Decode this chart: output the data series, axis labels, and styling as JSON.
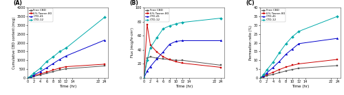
{
  "A": {
    "title": "(A)",
    "xlabel": "Time (hr)",
    "ylabel": "Cumulative CBD content (mcg)",
    "ylim": [
      0,
      4000
    ],
    "yticks": [
      0,
      500,
      1000,
      1500,
      2000,
      2500,
      3000,
      3500,
      4000
    ],
    "xlim": [
      0,
      25
    ],
    "xticks": [
      0,
      2,
      4,
      6,
      8,
      10,
      12,
      14,
      22,
      24
    ],
    "xticklabels": [
      "0",
      "2",
      "4",
      "6",
      "8",
      "10",
      "12",
      "14",
      "22",
      "24"
    ],
    "time": [
      0,
      1,
      2,
      4,
      6,
      8,
      10,
      12,
      24
    ],
    "series": {
      "Free CBD": [
        0,
        35,
        90,
        170,
        260,
        360,
        450,
        520,
        680
      ],
      "6% Tween 80": [
        0,
        55,
        130,
        230,
        330,
        450,
        560,
        640,
        780
      ],
      "CTD-41": [
        0,
        70,
        170,
        360,
        580,
        820,
        1050,
        1250,
        2150
      ],
      "CTD-12": [
        0,
        100,
        270,
        560,
        940,
        1200,
        1500,
        1700,
        3450
      ]
    },
    "colors": {
      "Free CBD": "#555555",
      "6% Tween 80": "#cc0000",
      "CTD-41": "#0000cc",
      "CTD-12": "#00aaaa"
    },
    "markers": {
      "Free CBD": "s",
      "6% Tween 80": "s",
      "CTD-41": "^",
      "CTD-12": "D"
    }
  },
  "B": {
    "title": "(B)",
    "xlabel": "Time (hr)",
    "ylabel": "Flux (mcg/hr-cm²)",
    "ylim": [
      0,
      100
    ],
    "yticks": [
      0,
      20,
      40,
      60,
      80,
      100
    ],
    "xlim": [
      0,
      25
    ],
    "xticks": [
      0,
      2,
      4,
      6,
      8,
      10,
      12,
      14,
      22,
      24
    ],
    "xticklabels": [
      "0",
      "2",
      "4",
      "6",
      "8",
      "10",
      "12",
      "14",
      "22",
      "24"
    ],
    "time": [
      0,
      1,
      2,
      4,
      6,
      8,
      10,
      12,
      24
    ],
    "series": {
      "Free CBD": [
        0,
        28,
        30,
        28,
        27,
        26,
        25,
        25,
        18
      ],
      "6% Tween 80": [
        0,
        76,
        47,
        37,
        30,
        26,
        23,
        21,
        15
      ],
      "CTD-41": [
        0,
        10,
        16,
        27,
        37,
        48,
        52,
        53,
        53
      ],
      "CTD-12": [
        0,
        25,
        43,
        57,
        70,
        74,
        77,
        79,
        85
      ]
    },
    "colors": {
      "Free CBD": "#555555",
      "6% Tween 80": "#cc0000",
      "CTD-41": "#0000cc",
      "CTD-12": "#00aaaa"
    },
    "markers": {
      "Free CBD": "s",
      "6% Tween 80": "s",
      "CTD-41": "^",
      "CTD-12": "D"
    }
  },
  "C": {
    "title": "(C)",
    "xlabel": "Time (hr)",
    "ylabel": "Permeation ratio (%)",
    "ylim": [
      0,
      40
    ],
    "yticks": [
      0,
      5,
      10,
      15,
      20,
      25,
      30,
      35,
      40
    ],
    "xlim": [
      0,
      25
    ],
    "xticks": [
      0,
      2,
      4,
      6,
      8,
      10,
      12,
      14,
      22,
      24
    ],
    "xticklabels": [
      "0",
      "2",
      "4",
      "6",
      "8",
      "10",
      "12",
      "14",
      "22",
      "24"
    ],
    "time": [
      0,
      1,
      2,
      4,
      6,
      8,
      10,
      12,
      24
    ],
    "series": {
      "Free CBD": [
        0,
        0.5,
        1.2,
        2.0,
        3.0,
        4.0,
        4.8,
        5.5,
        7.0
      ],
      "6% Tween 80": [
        0,
        0.8,
        1.8,
        3.2,
        4.8,
        6.2,
        7.2,
        8.0,
        10.5
      ],
      "CTD-41": [
        0,
        1.2,
        2.8,
        6.0,
        9.5,
        13.5,
        16.5,
        19.5,
        22.5
      ],
      "CTD-12": [
        0,
        1.8,
        4.5,
        9.0,
        14.5,
        19.5,
        23.5,
        26.5,
        35.0
      ]
    },
    "colors": {
      "Free CBD": "#555555",
      "6% Tween 80": "#cc0000",
      "CTD-41": "#0000cc",
      "CTD-12": "#00aaaa"
    },
    "markers": {
      "Free CBD": "s",
      "6% Tween 80": "s",
      "CTD-41": "^",
      "CTD-12": "D"
    }
  },
  "legend_labels": [
    "Free CBD",
    "6% Tween 80",
    "CTD-41",
    "CTD-12"
  ],
  "background_color": "#ffffff"
}
